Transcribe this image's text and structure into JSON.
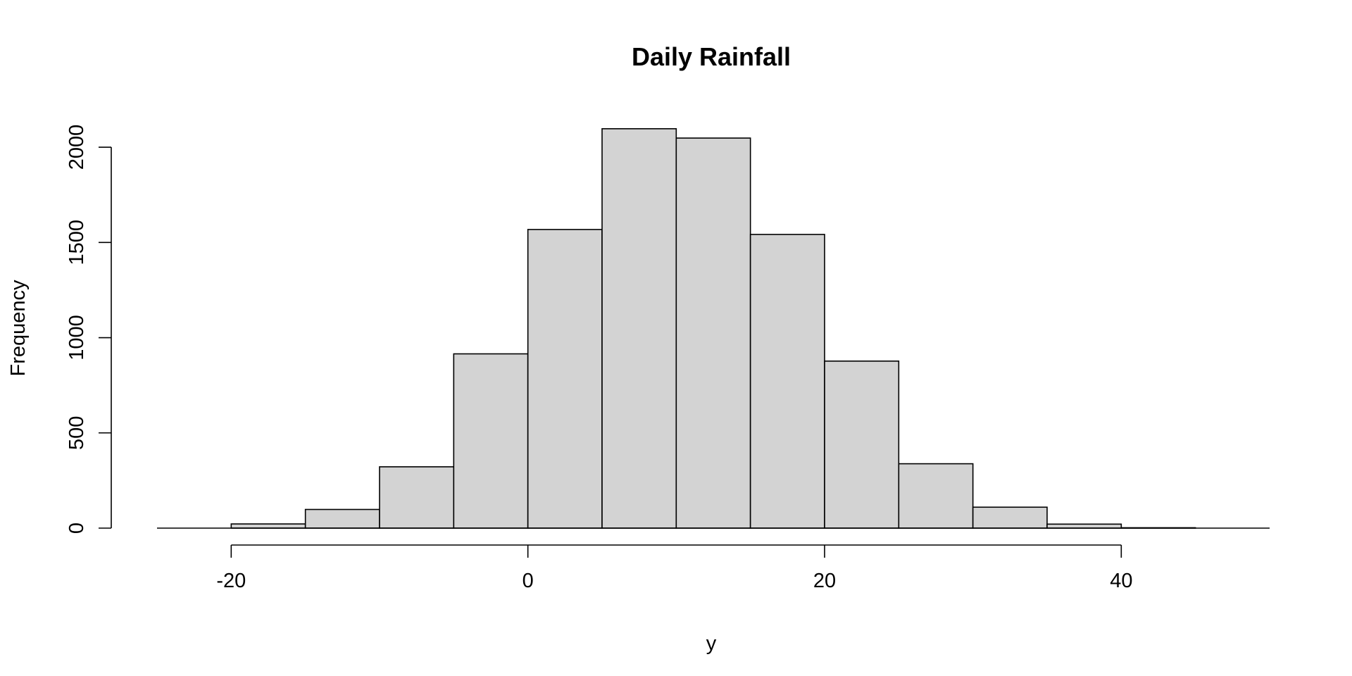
{
  "chart_data": {
    "type": "bar",
    "title": "Daily Rainfall",
    "xlabel": "y",
    "ylabel": "Frequency",
    "bin_edges": [
      -20,
      -15,
      -10,
      -5,
      0,
      5,
      10,
      15,
      20,
      25,
      30,
      35,
      40,
      45
    ],
    "values": [
      22,
      98,
      322,
      915,
      1568,
      2097,
      2048,
      1542,
      877,
      338,
      110,
      21,
      2
    ],
    "xlim": [
      -25,
      50
    ],
    "ylim": [
      0,
      2100
    ],
    "x_ticks": [
      -20,
      0,
      20,
      40
    ],
    "y_ticks": [
      0,
      500,
      1000,
      1500,
      2000
    ],
    "bar_fill": "#d3d3d3",
    "bar_stroke": "#000000",
    "grid": false,
    "legend": "none"
  }
}
